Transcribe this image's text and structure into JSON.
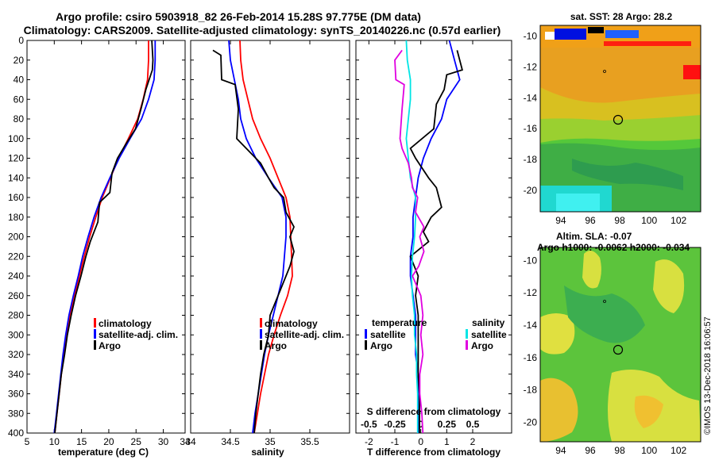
{
  "title_line1": "Argo profile: csiro 5903918_82 26-Feb-2014 15.28S 97.775E (DM data)",
  "title_line2": "Climatology: CARS2009. Satellite-adjusted climatology: synTS_20140226.nc (0.57d earlier)",
  "colors": {
    "climatology": "#ff0000",
    "satellite": "#0000ff",
    "argo": "#000000",
    "sat_salinity": "#00e5e5",
    "argo_salinity": "#e000e0"
  },
  "chart_data": [
    {
      "type": "line",
      "id": "temperature",
      "xlabel": "temperature (deg C)",
      "ylabel": "",
      "xlim": [
        5,
        34
      ],
      "ylim": [
        400,
        0
      ],
      "xticks": [
        "5",
        "10",
        "15",
        "20",
        "25",
        "30",
        "34"
      ],
      "yticks": [
        "0",
        "20",
        "40",
        "60",
        "80",
        "100",
        "120",
        "140",
        "160",
        "180",
        "200",
        "220",
        "240",
        "260",
        "280",
        "300",
        "320",
        "340",
        "360",
        "380",
        "400"
      ],
      "legend": [
        "climatology",
        "satellite-adj. clim.",
        "Argo"
      ],
      "series": [
        {
          "name": "climatology",
          "color": "#ff0000",
          "points": [
            [
              27.3,
              0
            ],
            [
              27.3,
              20
            ],
            [
              27.1,
              40
            ],
            [
              26.3,
              60
            ],
            [
              25.3,
              80
            ],
            [
              23.6,
              100
            ],
            [
              21.8,
              120
            ],
            [
              20.3,
              140
            ],
            [
              18.8,
              160
            ],
            [
              17.6,
              180
            ],
            [
              16.5,
              200
            ],
            [
              15.5,
              220
            ],
            [
              14.6,
              240
            ],
            [
              13.7,
              260
            ],
            [
              12.9,
              280
            ],
            [
              12.3,
              300
            ],
            [
              11.8,
              320
            ],
            [
              11.3,
              340
            ],
            [
              10.9,
              360
            ],
            [
              10.5,
              380
            ],
            [
              10.1,
              400
            ]
          ]
        },
        {
          "name": "satellite-adj. clim.",
          "color": "#0000ff",
          "points": [
            [
              28.5,
              0
            ],
            [
              28.5,
              20
            ],
            [
              28.3,
              40
            ],
            [
              27.3,
              60
            ],
            [
              26.0,
              80
            ],
            [
              23.9,
              100
            ],
            [
              21.9,
              120
            ],
            [
              20.2,
              140
            ],
            [
              18.6,
              160
            ],
            [
              17.3,
              180
            ],
            [
              16.2,
              200
            ],
            [
              15.2,
              220
            ],
            [
              14.4,
              240
            ],
            [
              13.5,
              260
            ],
            [
              12.7,
              280
            ],
            [
              12.1,
              300
            ],
            [
              11.6,
              320
            ],
            [
              11.2,
              340
            ],
            [
              10.8,
              360
            ],
            [
              10.4,
              380
            ],
            [
              10.0,
              400
            ]
          ]
        },
        {
          "name": "Argo",
          "color": "#000000",
          "points": [
            [
              27.9,
              0
            ],
            [
              28.1,
              20
            ],
            [
              28.0,
              30
            ],
            [
              26.8,
              50
            ],
            [
              25.9,
              70
            ],
            [
              24.9,
              90
            ],
            [
              23.2,
              105
            ],
            [
              21.6,
              120
            ],
            [
              20.6,
              135
            ],
            [
              20.2,
              155
            ],
            [
              18.3,
              165
            ],
            [
              18.0,
              185
            ],
            [
              16.6,
              205
            ],
            [
              15.8,
              220
            ],
            [
              14.9,
              240
            ],
            [
              13.9,
              260
            ],
            [
              13.1,
              280
            ],
            [
              12.4,
              300
            ],
            [
              11.9,
              320
            ],
            [
              11.3,
              340
            ],
            [
              10.9,
              360
            ],
            [
              10.5,
              380
            ],
            [
              10.1,
              400
            ]
          ]
        }
      ]
    },
    {
      "type": "line",
      "id": "salinity",
      "xlabel": "salinity",
      "ylabel": "",
      "xlim": [
        34,
        36
      ],
      "ylim": [
        400,
        0
      ],
      "xticks": [
        "34",
        "34.5",
        "35",
        "35.5"
      ],
      "legend": [
        "climatology",
        "satellite-adj. clim.",
        "Argo"
      ],
      "series": [
        {
          "name": "climatology",
          "color": "#ff0000",
          "points": [
            [
              34.62,
              0
            ],
            [
              34.63,
              20
            ],
            [
              34.66,
              40
            ],
            [
              34.72,
              60
            ],
            [
              34.78,
              80
            ],
            [
              34.88,
              100
            ],
            [
              35.0,
              120
            ],
            [
              35.1,
              140
            ],
            [
              35.2,
              160
            ],
            [
              35.25,
              180
            ],
            [
              35.26,
              200
            ],
            [
              35.27,
              220
            ],
            [
              35.28,
              240
            ],
            [
              35.22,
              260
            ],
            [
              35.13,
              280
            ],
            [
              35.05,
              300
            ],
            [
              34.98,
              320
            ],
            [
              34.93,
              340
            ],
            [
              34.88,
              360
            ],
            [
              34.84,
              380
            ],
            [
              34.8,
              400
            ]
          ]
        },
        {
          "name": "satellite-adj. clim.",
          "color": "#0000ff",
          "points": [
            [
              34.48,
              0
            ],
            [
              34.5,
              20
            ],
            [
              34.55,
              40
            ],
            [
              34.6,
              60
            ],
            [
              34.63,
              80
            ],
            [
              34.7,
              100
            ],
            [
              34.82,
              120
            ],
            [
              34.98,
              140
            ],
            [
              35.15,
              160
            ],
            [
              35.2,
              180
            ],
            [
              35.2,
              200
            ],
            [
              35.18,
              220
            ],
            [
              35.16,
              240
            ],
            [
              35.1,
              260
            ],
            [
              35.04,
              280
            ],
            [
              34.98,
              300
            ],
            [
              34.93,
              320
            ],
            [
              34.89,
              340
            ],
            [
              34.85,
              360
            ],
            [
              34.81,
              380
            ],
            [
              34.78,
              400
            ]
          ]
        },
        {
          "name": "Argo",
          "color": "#000000",
          "points": [
            [
              34.28,
              10
            ],
            [
              34.38,
              15
            ],
            [
              34.39,
              40
            ],
            [
              34.56,
              45
            ],
            [
              34.6,
              70
            ],
            [
              34.58,
              100
            ],
            [
              34.7,
              110
            ],
            [
              34.88,
              125
            ],
            [
              34.98,
              140
            ],
            [
              35.05,
              150
            ],
            [
              35.17,
              160
            ],
            [
              35.2,
              175
            ],
            [
              35.3,
              190
            ],
            [
              35.25,
              200
            ],
            [
              35.3,
              215
            ],
            [
              35.25,
              230
            ],
            [
              35.2,
              240
            ],
            [
              35.1,
              260
            ],
            [
              35.0,
              280
            ],
            [
              34.98,
              300
            ],
            [
              34.92,
              320
            ],
            [
              34.88,
              340
            ],
            [
              34.85,
              360
            ],
            [
              34.82,
              380
            ],
            [
              34.8,
              400
            ]
          ]
        }
      ]
    },
    {
      "type": "line",
      "id": "differences",
      "xlabel": "T difference from climatology",
      "xlabel_top": "S difference from climatology",
      "xlim": [
        -2.5,
        3.5
      ],
      "ylim": [
        400,
        0
      ],
      "xticks": [
        "-2",
        "-1",
        "0",
        "1",
        "2"
      ],
      "sticks": [
        "-0.5",
        "-0.25",
        "0",
        "0.25",
        "0.5"
      ],
      "legend_left_title": "temperature",
      "legend_left": [
        "satellite",
        "Argo"
      ],
      "legend_right_title": "salinity",
      "legend_right": [
        "satellite",
        "Argo"
      ],
      "series": [
        {
          "name": "T satellite",
          "color": "#0000ff",
          "points": [
            [
              1.1,
              0
            ],
            [
              1.3,
              20
            ],
            [
              1.5,
              40
            ],
            [
              1.0,
              60
            ],
            [
              0.8,
              80
            ],
            [
              0.4,
              100
            ],
            [
              0.1,
              120
            ],
            [
              -0.1,
              140
            ],
            [
              -0.2,
              160
            ],
            [
              -0.3,
              180
            ],
            [
              -0.3,
              200
            ],
            [
              -0.4,
              220
            ],
            [
              -0.4,
              240
            ],
            [
              -0.3,
              260
            ],
            [
              -0.2,
              280
            ],
            [
              -0.2,
              300
            ],
            [
              -0.2,
              320
            ],
            [
              -0.1,
              340
            ],
            [
              -0.1,
              360
            ],
            [
              -0.1,
              380
            ],
            [
              -0.1,
              400
            ]
          ]
        },
        {
          "name": "T Argo",
          "color": "#000000",
          "points": [
            [
              1.4,
              10
            ],
            [
              1.6,
              30
            ],
            [
              1.0,
              35
            ],
            [
              0.9,
              50
            ],
            [
              0.6,
              65
            ],
            [
              0.5,
              90
            ],
            [
              -0.4,
              110
            ],
            [
              -0.2,
              120
            ],
            [
              0.3,
              140
            ],
            [
              0.6,
              150
            ],
            [
              0.8,
              170
            ],
            [
              0.4,
              180
            ],
            [
              0.1,
              195
            ],
            [
              0.3,
              205
            ],
            [
              -0.4,
              220
            ],
            [
              -0.1,
              240
            ],
            [
              -0.2,
              260
            ],
            [
              -0.1,
              280
            ],
            [
              -0.1,
              300
            ],
            [
              -0.1,
              320
            ],
            [
              -0.1,
              340
            ],
            [
              -0.05,
              360
            ],
            [
              -0.05,
              380
            ],
            [
              -0.05,
              400
            ]
          ]
        },
        {
          "name": "S satellite",
          "color": "#00e5e5",
          "points": [
            [
              -0.14,
              0
            ],
            [
              -0.13,
              20
            ],
            [
              -0.1,
              40
            ],
            [
              -0.1,
              60
            ],
            [
              -0.12,
              80
            ],
            [
              -0.14,
              100
            ],
            [
              -0.12,
              120
            ],
            [
              -0.1,
              140
            ],
            [
              -0.05,
              160
            ],
            [
              -0.05,
              180
            ],
            [
              -0.06,
              200
            ],
            [
              -0.08,
              220
            ],
            [
              -0.09,
              240
            ],
            [
              -0.08,
              260
            ],
            [
              -0.06,
              280
            ],
            [
              -0.06,
              300
            ],
            [
              -0.04,
              320
            ],
            [
              -0.04,
              340
            ],
            [
              -0.03,
              360
            ],
            [
              -0.03,
              380
            ],
            [
              -0.03,
              400
            ]
          ]
        },
        {
          "name": "S Argo",
          "color": "#e000e0",
          "points": [
            [
              -0.18,
              10
            ],
            [
              -0.25,
              20
            ],
            [
              -0.24,
              40
            ],
            [
              -0.16,
              45
            ],
            [
              -0.18,
              70
            ],
            [
              -0.2,
              100
            ],
            [
              -0.18,
              110
            ],
            [
              -0.12,
              125
            ],
            [
              -0.09,
              140
            ],
            [
              -0.08,
              150
            ],
            [
              -0.03,
              160
            ],
            [
              -0.05,
              175
            ],
            [
              0.03,
              190
            ],
            [
              -0.01,
              200
            ],
            [
              0.03,
              215
            ],
            [
              -0.02,
              230
            ],
            [
              -0.08,
              240
            ],
            [
              0.0,
              260
            ],
            [
              0.02,
              280
            ],
            [
              0.0,
              300
            ],
            [
              0.02,
              320
            ],
            [
              -0.01,
              340
            ],
            [
              -0.01,
              360
            ],
            [
              0.01,
              380
            ],
            [
              0.02,
              400
            ]
          ]
        }
      ]
    }
  ],
  "maps": {
    "sst_title": "sat. SST: 28 Argo: 28.2",
    "sla_title1": "Altim. SLA: -0.07",
    "sla_title2": "Argo h1000: -0.0062 h2000: -0.034",
    "lon_ticks": [
      "94",
      "96",
      "98",
      "100",
      "102"
    ],
    "lat_ticks": [
      "-10",
      "-12",
      "-14",
      "-16",
      "-18",
      "-20"
    ]
  },
  "credit": "©IMOS 13-Dec-2018 16:06:57"
}
